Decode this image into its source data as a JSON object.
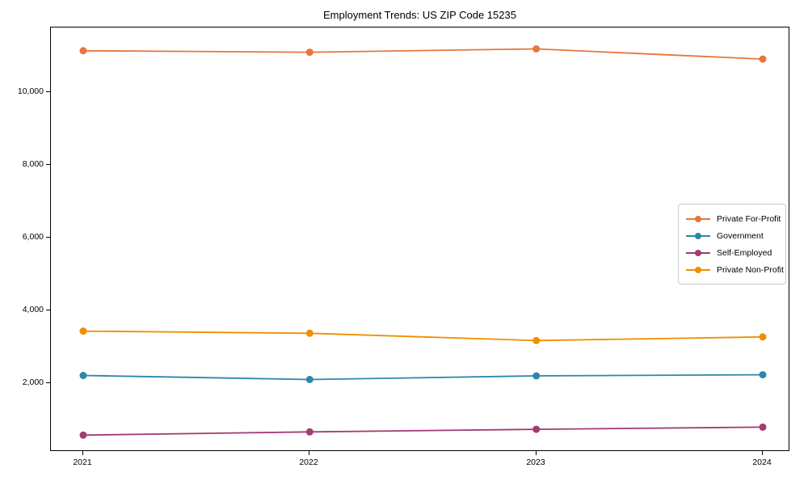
{
  "chart_data": {
    "type": "line",
    "title": "Employment Trends: US ZIP Code 15235",
    "xlabel": "",
    "ylabel": "",
    "categories": [
      "2021",
      "2022",
      "2023",
      "2024"
    ],
    "series": [
      {
        "name": "Private For-Profit",
        "color": "#e8763c",
        "values": [
          11140,
          11100,
          11190,
          10910
        ]
      },
      {
        "name": "Government",
        "color": "#2e86ab",
        "values": [
          2210,
          2100,
          2200,
          2230
        ]
      },
      {
        "name": "Self-Employed",
        "color": "#a23b72",
        "values": [
          570,
          660,
          730,
          790
        ]
      },
      {
        "name": "Private Non-Profit",
        "color": "#f18f01",
        "values": [
          3430,
          3370,
          3170,
          3270
        ]
      }
    ],
    "y_ticks": [
      {
        "label": "2,000",
        "value": 2000
      },
      {
        "label": "4,000",
        "value": 4000
      },
      {
        "label": "6,000",
        "value": 6000
      },
      {
        "label": "8,000",
        "value": 8000
      },
      {
        "label": "10,000",
        "value": 10000
      }
    ],
    "ylim": [
      110,
      11780
    ],
    "grid": false,
    "legend_position": "center-right",
    "marker": "circle",
    "background": "#ffffff"
  }
}
